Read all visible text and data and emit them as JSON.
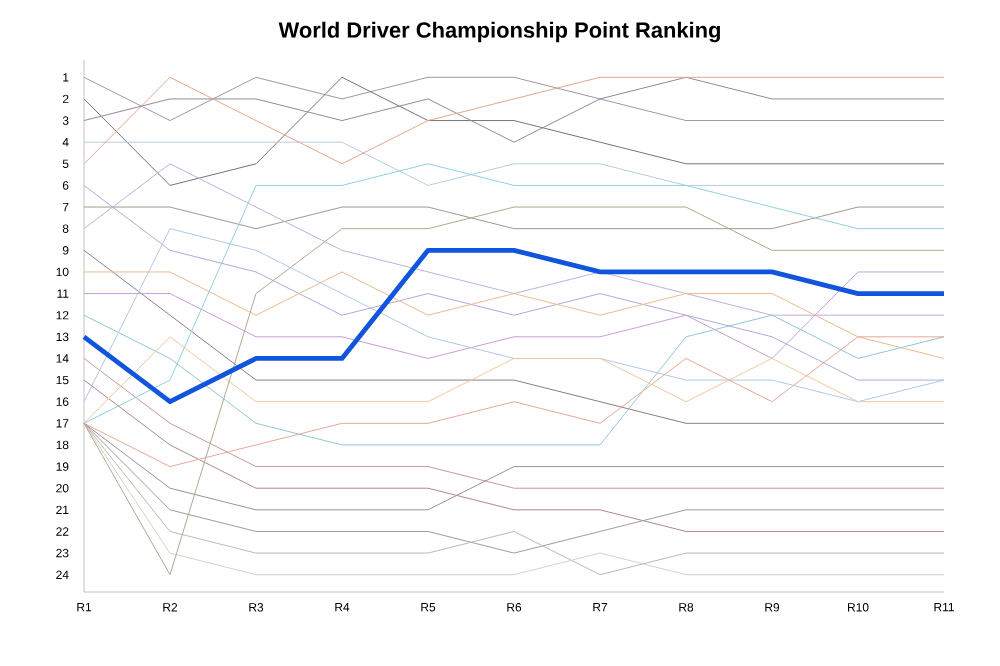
{
  "chart_data": {
    "type": "line",
    "title": "World Driver Championship Point Ranking",
    "categories": [
      "R1",
      "R2",
      "R3",
      "R4",
      "R5",
      "R6",
      "R7",
      "R8",
      "R9",
      "R10",
      "R11"
    ],
    "ylim": [
      24.8,
      0.2
    ],
    "yticks": [
      1,
      2,
      3,
      4,
      5,
      6,
      7,
      8,
      9,
      10,
      11,
      12,
      13,
      14,
      15,
      16,
      17,
      18,
      19,
      20,
      21,
      22,
      23,
      24
    ],
    "grid": false,
    "marker": "none",
    "line_style": "solid",
    "series": [
      {
        "color": "#9a9aa6",
        "values": [
          1,
          3,
          1,
          2,
          1,
          1,
          2,
          3,
          3,
          3,
          3
        ]
      },
      {
        "color": "#7a7070",
        "values": [
          2,
          6,
          5,
          1,
          3,
          3,
          4,
          5,
          5,
          5,
          5
        ]
      },
      {
        "color": "#8c8c9c",
        "values": [
          3,
          2,
          2,
          3,
          2,
          4,
          2,
          1,
          2,
          2,
          2
        ]
      },
      {
        "color": "#b8cde0",
        "values": [
          4,
          4,
          4,
          4,
          6,
          5,
          5,
          6,
          6,
          6,
          6
        ]
      },
      {
        "color": "#e8a58c",
        "values": [
          5,
          1,
          3,
          5,
          3,
          2,
          1,
          1,
          1,
          1,
          1
        ]
      },
      {
        "color": "#b4a8dc",
        "values": [
          6,
          9,
          10,
          12,
          11,
          12,
          11,
          12,
          13,
          15,
          15
        ]
      },
      {
        "color": "#a09a8c",
        "values": [
          7,
          7,
          8,
          7,
          7,
          8,
          8,
          8,
          8,
          7,
          7
        ]
      },
      {
        "color": "#c0b0e0",
        "values": [
          8,
          5,
          7,
          9,
          10,
          11,
          10,
          11,
          12,
          12,
          12
        ]
      },
      {
        "color": "#8c7c88",
        "values": [
          9,
          12,
          15,
          15,
          15,
          15,
          16,
          17,
          17,
          17,
          17
        ]
      },
      {
        "color": "#f0b890",
        "values": [
          10,
          10,
          12,
          10,
          12,
          11,
          12,
          11,
          11,
          13,
          14
        ]
      },
      {
        "color": "#c8a0d8",
        "values": [
          11,
          11,
          13,
          13,
          14,
          13,
          13,
          12,
          14,
          10,
          10
        ]
      },
      {
        "color": "#90c8d0",
        "values": [
          12,
          14,
          17,
          18,
          18,
          18,
          18,
          13,
          12,
          14,
          13
        ]
      },
      {
        "color": "#c89898",
        "values": [
          14,
          17,
          19,
          19,
          19,
          20,
          20,
          20,
          20,
          20,
          20
        ]
      },
      {
        "color": "#b08888",
        "values": [
          15,
          18,
          20,
          20,
          20,
          21,
          21,
          22,
          22,
          22,
          22
        ]
      },
      {
        "color": "#b0c8e8",
        "values": [
          16,
          8,
          9,
          11,
          13,
          14,
          14,
          15,
          15,
          16,
          15
        ]
      },
      {
        "color": "#f0c8a0",
        "values": [
          17,
          13,
          16,
          16,
          16,
          14,
          14,
          16,
          14,
          16,
          16
        ]
      },
      {
        "color": "#90d0e0",
        "values": [
          17,
          15,
          6,
          6,
          5,
          6,
          6,
          6,
          7,
          8,
          8
        ]
      },
      {
        "color": "#e8a898",
        "values": [
          17,
          19,
          18,
          17,
          17,
          16,
          17,
          14,
          16,
          13,
          13
        ]
      },
      {
        "color": "#a09090",
        "values": [
          17,
          20,
          21,
          21,
          21,
          19,
          19,
          19,
          19,
          19,
          19
        ]
      },
      {
        "color": "#9c9c9c",
        "values": [
          17,
          21,
          22,
          22,
          22,
          23,
          22,
          21,
          21,
          21,
          21
        ]
      },
      {
        "color": "#c0b8b0",
        "values": [
          17,
          22,
          23,
          23,
          23,
          22,
          24,
          23,
          23,
          23,
          23
        ]
      },
      {
        "color": "#d8d0c8",
        "values": [
          17,
          23,
          24,
          24,
          24,
          24,
          23,
          24,
          24,
          24,
          24
        ]
      },
      {
        "color": "#b0a890",
        "values": [
          17,
          24,
          11,
          8,
          8,
          7,
          7,
          7,
          9,
          9,
          9
        ]
      },
      {
        "color": "#1155dd",
        "values": [
          13,
          16,
          14,
          14,
          9,
          9,
          10,
          10,
          10,
          11,
          11
        ]
      }
    ]
  }
}
